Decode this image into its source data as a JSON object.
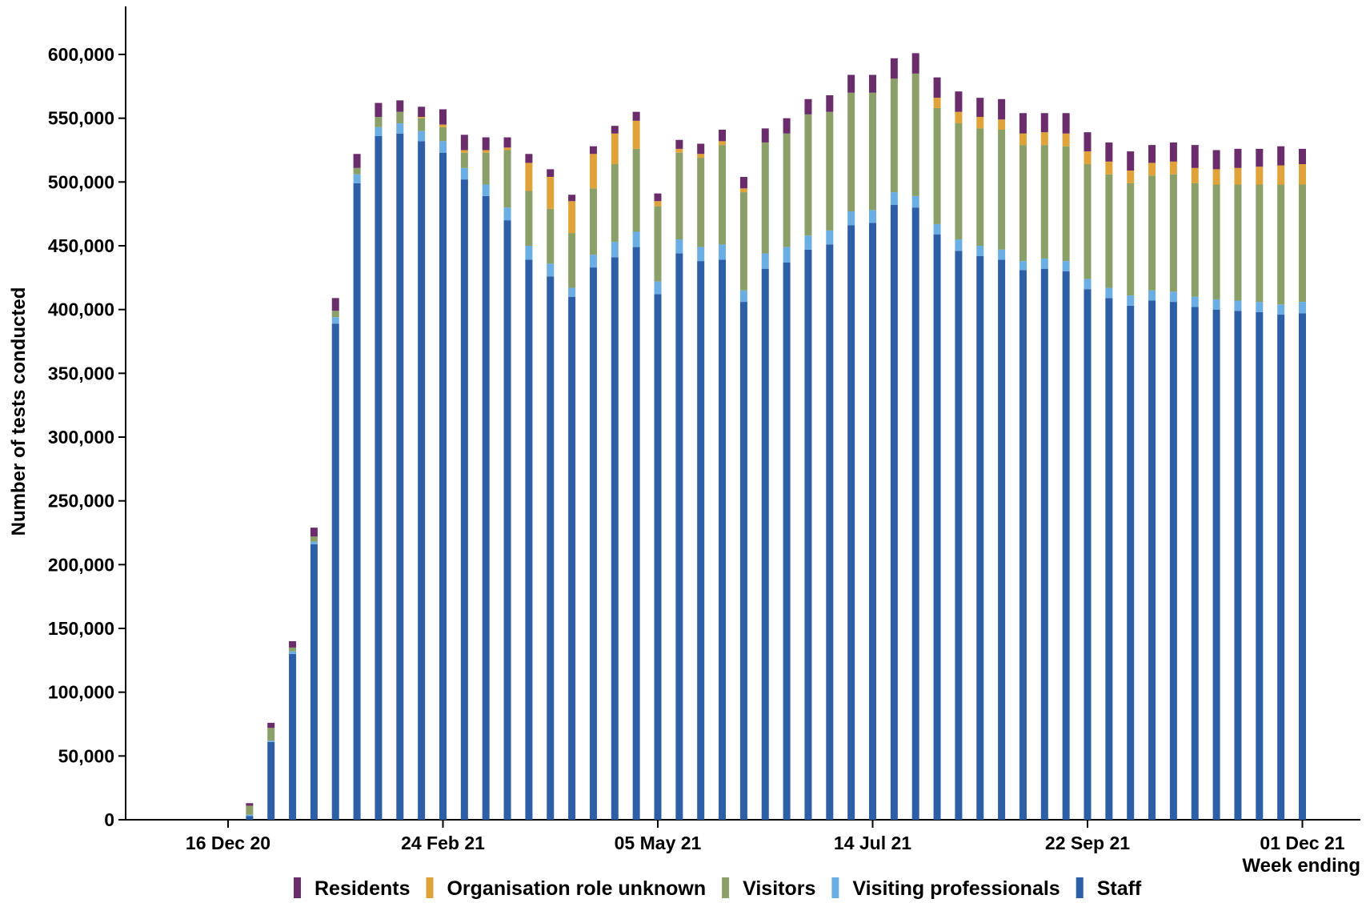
{
  "chart_data": {
    "type": "bar",
    "stacked": true,
    "title": "",
    "ylabel": "Number of tests conducted",
    "xlabel": "Week ending",
    "ylim": [
      0,
      600000
    ],
    "yticks": [
      0,
      50000,
      100000,
      150000,
      200000,
      250000,
      300000,
      350000,
      400000,
      450000,
      500000,
      550000,
      600000
    ],
    "ytick_labels": [
      "0",
      "50,000",
      "100,000",
      "150,000",
      "200,000",
      "250,000",
      "300,000",
      "350,000",
      "400,000",
      "450,000",
      "500,000",
      "550,000",
      "600,000"
    ],
    "xtick_labels": [
      {
        "week_index": 0,
        "label": "16 Dec 20"
      },
      {
        "week_index": 10,
        "label": "24 Feb 21"
      },
      {
        "week_index": 20,
        "label": "05 May 21"
      },
      {
        "week_index": 30,
        "label": "14 Jul 21"
      },
      {
        "week_index": 40,
        "label": "22 Sep 21"
      },
      {
        "week_index": 50,
        "label": "01 Dec 21"
      }
    ],
    "legend_position": "bottom",
    "grid": false,
    "weeks": 51,
    "series": [
      {
        "name": "Staff",
        "color": "#2d5fa6",
        "values": [
          0,
          3000,
          61000,
          130000,
          216000,
          389000,
          499000,
          536000,
          538000,
          532000,
          523000,
          502000,
          489000,
          470000,
          439000,
          426000,
          410000,
          433000,
          441000,
          449000,
          412000,
          444000,
          438000,
          439000,
          406000,
          432000,
          437000,
          447000,
          451000,
          466000,
          468000,
          482000,
          480000,
          459000,
          446000,
          442000,
          439000,
          431000,
          432000,
          430000,
          416000,
          409000,
          403000,
          407000,
          406000,
          402000,
          400000,
          399000,
          398000,
          396000,
          397000
        ]
      },
      {
        "name": "Visiting professionals",
        "color": "#6aaee3",
        "values": [
          0,
          1000,
          1000,
          2000,
          2000,
          5000,
          7000,
          7000,
          8000,
          8000,
          9000,
          9000,
          9000,
          10000,
          11000,
          10000,
          7000,
          10000,
          12000,
          12000,
          10000,
          11000,
          11000,
          12000,
          9000,
          12000,
          12000,
          11000,
          11000,
          11000,
          10000,
          10000,
          9000,
          8000,
          9000,
          8000,
          8000,
          7000,
          8000,
          8000,
          8000,
          8000,
          8000,
          8000,
          8000,
          8000,
          8000,
          8000,
          8000,
          8000,
          9000
        ]
      },
      {
        "name": "Visitors",
        "color": "#8aa068",
        "values": [
          0,
          7000,
          10000,
          3000,
          4000,
          5000,
          5000,
          8000,
          9000,
          10000,
          11000,
          12000,
          25000,
          45000,
          43000,
          43000,
          43000,
          52000,
          61000,
          65000,
          59000,
          68000,
          70000,
          78000,
          77000,
          87000,
          89000,
          95000,
          93000,
          93000,
          92000,
          89000,
          96000,
          91000,
          91000,
          92000,
          94000,
          91000,
          89000,
          90000,
          90000,
          89000,
          88000,
          90000,
          92000,
          89000,
          90000,
          91000,
          92000,
          94000,
          92000
        ]
      },
      {
        "name": "Organisation role unknown",
        "color": "#e0a33a",
        "values": [
          0,
          0,
          0,
          0,
          0,
          0,
          0,
          0,
          0,
          1000,
          2000,
          2000,
          2000,
          2000,
          22000,
          25000,
          25000,
          27000,
          24000,
          22000,
          4000,
          3000,
          3000,
          3000,
          3000,
          0,
          0,
          0,
          0,
          0,
          0,
          0,
          0,
          8000,
          9000,
          9000,
          8000,
          9000,
          10000,
          10000,
          10000,
          10000,
          10000,
          10000,
          10000,
          12000,
          12000,
          13000,
          14000,
          15000,
          16000
        ]
      },
      {
        "name": "Residents",
        "color": "#6a2c6b",
        "values": [
          0,
          2000,
          4000,
          5000,
          7000,
          10000,
          11000,
          11000,
          9000,
          8000,
          12000,
          12000,
          10000,
          8000,
          7000,
          6000,
          5000,
          6000,
          6000,
          7000,
          6000,
          7000,
          8000,
          9000,
          9000,
          11000,
          12000,
          12000,
          13000,
          14000,
          14000,
          16000,
          16000,
          16000,
          16000,
          15000,
          16000,
          16000,
          15000,
          16000,
          15000,
          15000,
          15000,
          14000,
          15000,
          18000,
          15000,
          15000,
          14000,
          15000,
          12000
        ]
      }
    ],
    "legend_order": [
      "Residents",
      "Organisation role unknown",
      "Visitors",
      "Visiting professionals",
      "Staff"
    ]
  }
}
